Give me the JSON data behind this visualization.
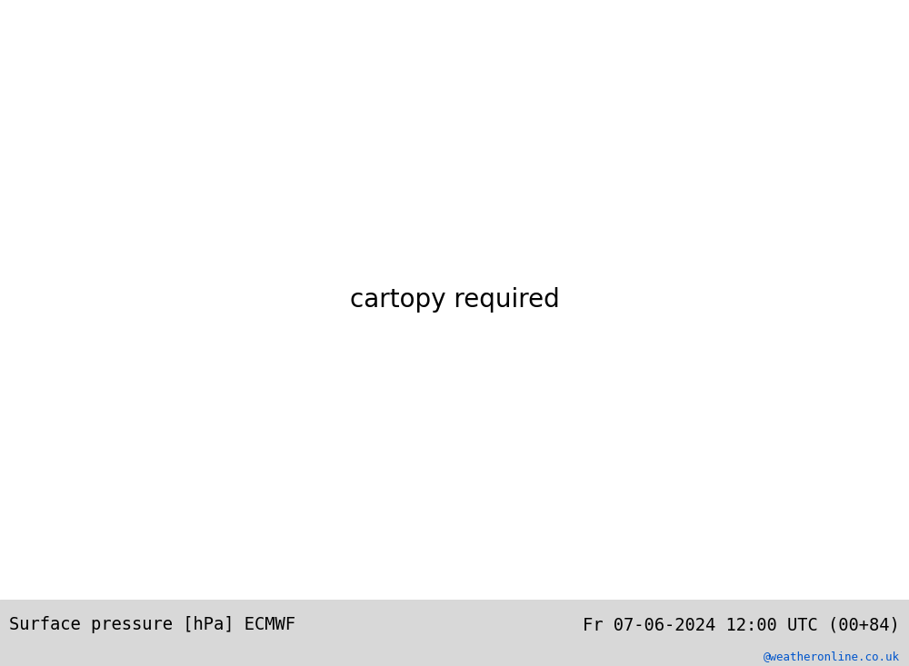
{
  "title_left": "Surface pressure [hPa] ECMWF",
  "title_right": "Fr 07-06-2024 12:00 UTC (00+84)",
  "watermark": "@weatheronline.co.uk",
  "sea_color": "#dde8ee",
  "land_color": "#c8e8b8",
  "coast_color": "#444444",
  "footer_bg": "#d8d8d8",
  "text_black": "#000000",
  "text_blue": "#0055cc",
  "isobar_red": "#dd0000",
  "isobar_blue": "#0033cc",
  "isobar_black": "#000000",
  "fig_width": 10.0,
  "fig_height": 7.33
}
